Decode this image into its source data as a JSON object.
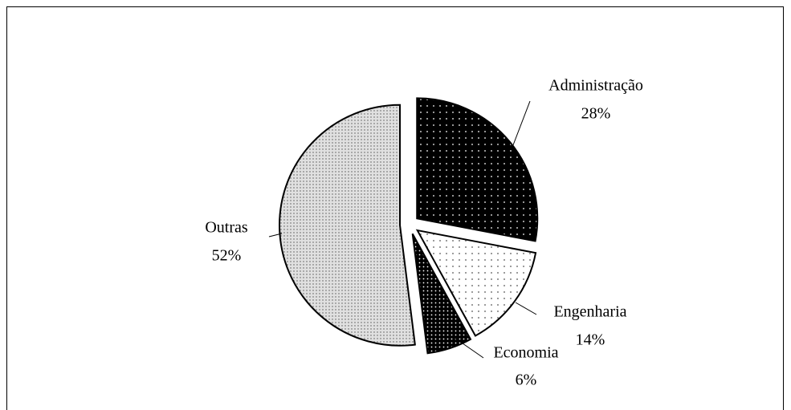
{
  "chart_data": {
    "type": "pie",
    "categories": [
      "Administração",
      "Engenharia",
      "Economia",
      "Outras"
    ],
    "values": [
      28,
      14,
      6,
      52
    ],
    "value_labels": [
      "28%",
      "14%",
      "6%",
      "52%"
    ],
    "colors": [
      "#000000",
      "#ffffff",
      "#000000",
      "#e0e0e0"
    ]
  }
}
